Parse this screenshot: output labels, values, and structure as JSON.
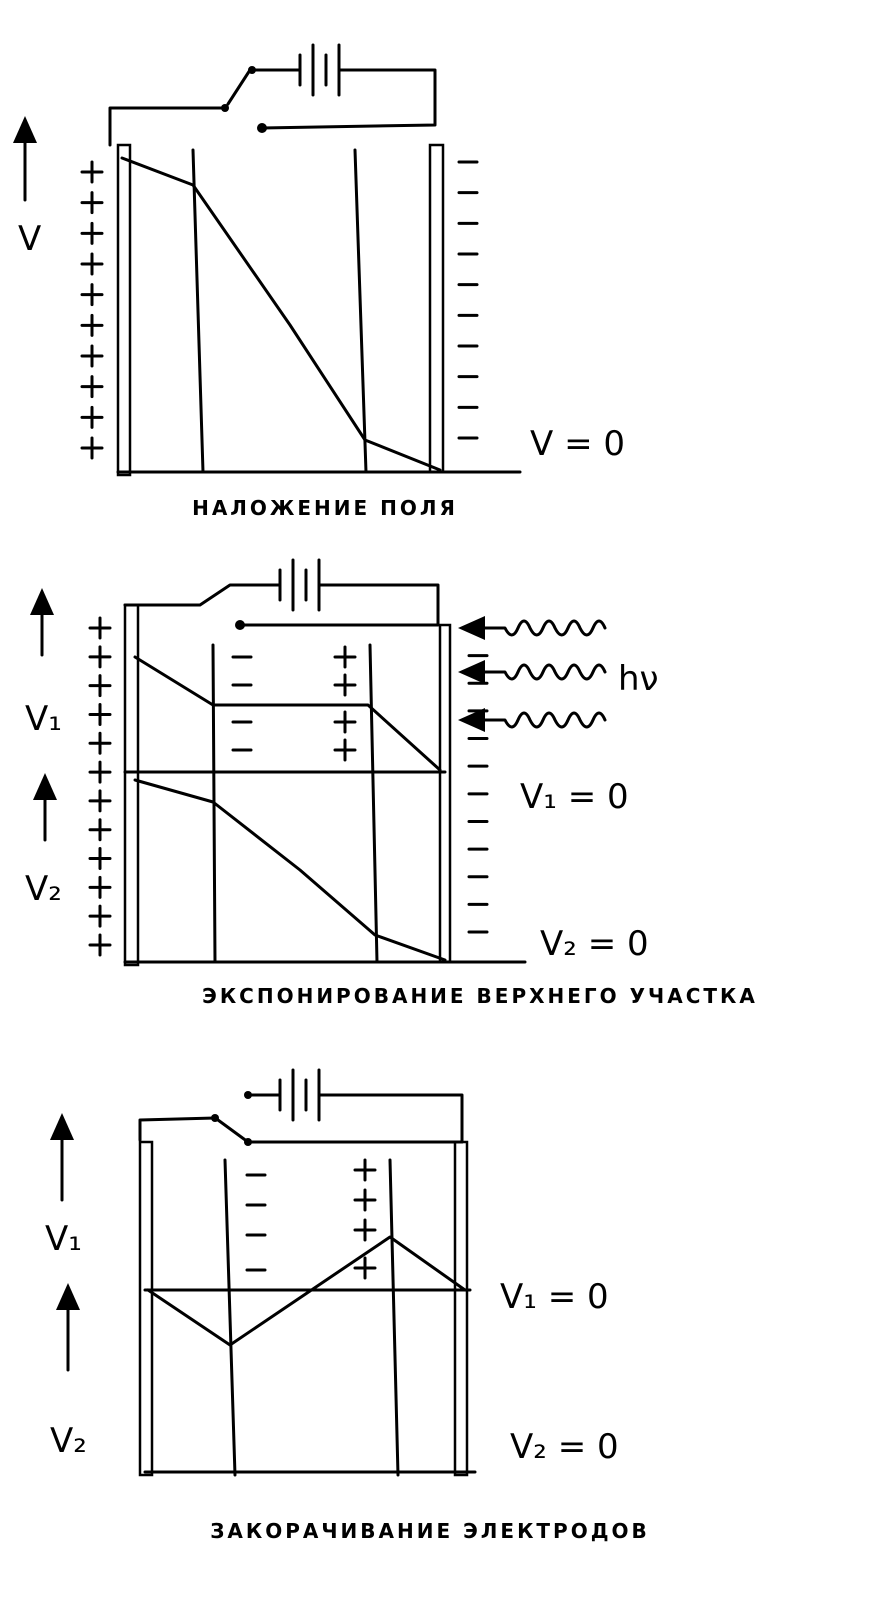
{
  "panels": [
    {
      "caption": "НАЛОЖЕНИЕ ПОЛЯ",
      "labels": {
        "v": "V",
        "v_zero": "V = 0"
      }
    },
    {
      "caption": "ЭКСПОНИРОВАНИЕ ВЕРХНЕГО УЧАСТКА",
      "labels": {
        "v1": "V₁",
        "v2": "V₂",
        "v1_zero": "V₁ = 0",
        "v2_zero": "V₂ = 0",
        "light": "hν"
      }
    },
    {
      "caption": "ЗАКОРАЧИВАНИЕ ЭЛЕКТРОДОВ",
      "labels": {
        "v1": "V₁",
        "v2": "V₂",
        "v1_zero": "V₁ = 0",
        "v2_zero": "V₂ = 0"
      }
    }
  ],
  "icons": [
    "battery-icon",
    "switch-icon",
    "arrow-up-icon",
    "wave-arrow-icon"
  ],
  "colors": {
    "ink": "#000000",
    "paper": "#ffffff"
  }
}
